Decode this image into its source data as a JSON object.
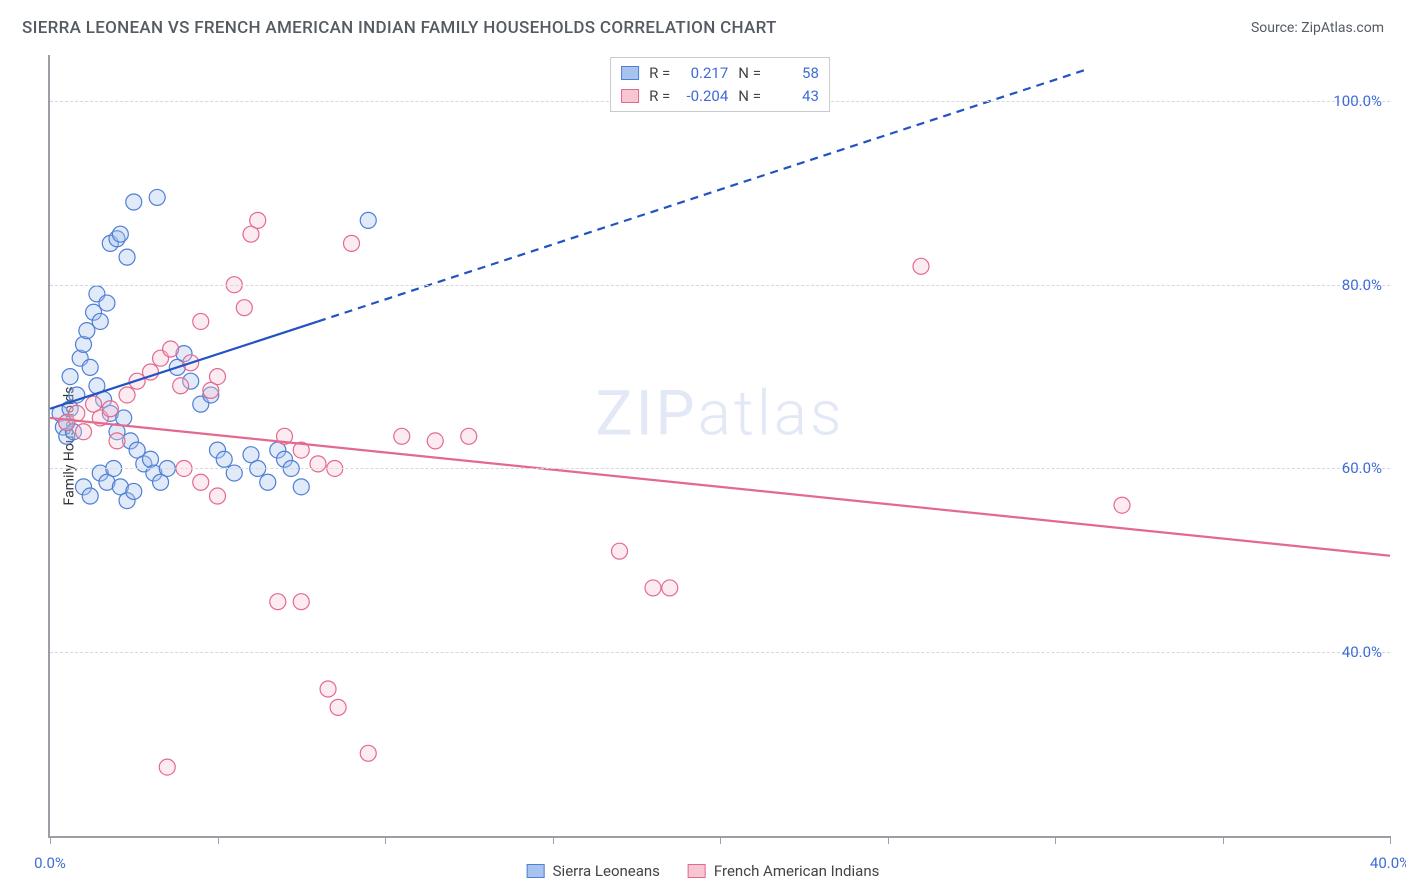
{
  "title": "SIERRA LEONEAN VS FRENCH AMERICAN INDIAN FAMILY HOUSEHOLDS CORRELATION CHART",
  "source_label": "Source: ZipAtlas.com",
  "watermark": {
    "bold": "ZIP",
    "thin": "atlas"
  },
  "y_axis_label": "Family Households",
  "chart": {
    "type": "scatter",
    "background_color": "#ffffff",
    "grid_color": "#d6d8db",
    "axis_color": "#9a9fa6",
    "tick_label_color": "#3f6bd8",
    "xlim": [
      0,
      40
    ],
    "ylim": [
      20,
      105
    ],
    "y_ticks": [
      40,
      60,
      80,
      100
    ],
    "y_tick_labels": [
      "40.0%",
      "60.0%",
      "80.0%",
      "100.0%"
    ],
    "x_ticks": [
      0,
      5,
      10,
      15,
      20,
      25,
      30,
      35,
      40
    ],
    "x_tick_visible_labels": {
      "0": "0.0%",
      "40": "40.0%"
    },
    "marker_radius": 8,
    "marker_stroke_width": 1.2,
    "marker_fill_opacity": 0.35
  },
  "series": {
    "blue": {
      "name": "Sierra Leoneans",
      "color_fill": "#a8c3ee",
      "color_stroke": "#4f7fd6",
      "r": "0.217",
      "n": "58",
      "trend": {
        "x1": 0,
        "y1": 66.5,
        "x2": 8,
        "y2": 76,
        "dash_x2": 31,
        "dash_y2": 103.5,
        "line_color": "#2353c2",
        "line_width": 2.2
      },
      "points": [
        [
          0.3,
          66
        ],
        [
          0.4,
          64.5
        ],
        [
          0.5,
          65
        ],
        [
          0.6,
          66.5
        ],
        [
          0.5,
          63.5
        ],
        [
          0.7,
          64
        ],
        [
          0.8,
          68
        ],
        [
          0.6,
          70
        ],
        [
          0.9,
          72
        ],
        [
          1.0,
          73.5
        ],
        [
          1.1,
          75
        ],
        [
          1.3,
          77
        ],
        [
          1.4,
          79
        ],
        [
          1.5,
          76
        ],
        [
          1.7,
          78
        ],
        [
          1.8,
          84.5
        ],
        [
          2.0,
          85
        ],
        [
          2.1,
          85.5
        ],
        [
          2.3,
          83
        ],
        [
          2.5,
          89
        ],
        [
          3.2,
          89.5
        ],
        [
          1.2,
          71
        ],
        [
          1.4,
          69
        ],
        [
          1.6,
          67.5
        ],
        [
          1.8,
          66
        ],
        [
          2.0,
          64
        ],
        [
          2.2,
          65.5
        ],
        [
          2.4,
          63
        ],
        [
          2.6,
          62
        ],
        [
          2.8,
          60.5
        ],
        [
          3.0,
          61
        ],
        [
          3.1,
          59.5
        ],
        [
          3.3,
          58.5
        ],
        [
          3.5,
          60
        ],
        [
          3.8,
          71
        ],
        [
          4.0,
          72.5
        ],
        [
          4.2,
          69.5
        ],
        [
          4.5,
          67
        ],
        [
          4.8,
          68
        ],
        [
          5.0,
          62
        ],
        [
          5.2,
          61
        ],
        [
          5.5,
          59.5
        ],
        [
          6.0,
          61.5
        ],
        [
          6.2,
          60
        ],
        [
          6.5,
          58.5
        ],
        [
          6.8,
          62
        ],
        [
          7.0,
          61
        ],
        [
          7.2,
          60
        ],
        [
          7.5,
          58
        ],
        [
          9.5,
          87
        ],
        [
          1.0,
          58
        ],
        [
          1.2,
          57
        ],
        [
          1.5,
          59.5
        ],
        [
          1.7,
          58.5
        ],
        [
          1.9,
          60
        ],
        [
          2.1,
          58
        ],
        [
          2.3,
          56.5
        ],
        [
          2.5,
          57.5
        ]
      ]
    },
    "pink": {
      "name": "French American Indians",
      "color_fill": "#f6c6d3",
      "color_stroke": "#e36a8e",
      "r": "-0.204",
      "n": "43",
      "trend": {
        "x1": 0,
        "y1": 65.5,
        "x2": 40,
        "y2": 50.5,
        "line_color": "#e36a8e",
        "line_width": 2.2
      },
      "points": [
        [
          0.5,
          65
        ],
        [
          0.8,
          66
        ],
        [
          1.0,
          64
        ],
        [
          1.3,
          67
        ],
        [
          1.5,
          65.5
        ],
        [
          1.8,
          66.5
        ],
        [
          2.0,
          63
        ],
        [
          2.3,
          68
        ],
        [
          2.6,
          69.5
        ],
        [
          3.0,
          70.5
        ],
        [
          3.3,
          72
        ],
        [
          3.6,
          73
        ],
        [
          3.9,
          69
        ],
        [
          4.2,
          71.5
        ],
        [
          4.5,
          76
        ],
        [
          4.8,
          68.5
        ],
        [
          5.0,
          70
        ],
        [
          5.5,
          80
        ],
        [
          5.8,
          77.5
        ],
        [
          6.0,
          85.5
        ],
        [
          6.2,
          87
        ],
        [
          7.0,
          63.5
        ],
        [
          7.5,
          62
        ],
        [
          8.0,
          60.5
        ],
        [
          8.5,
          60
        ],
        [
          9.0,
          84.5
        ],
        [
          10.5,
          63.5
        ],
        [
          11.5,
          63
        ],
        [
          12.5,
          63.5
        ],
        [
          7.5,
          45.5
        ],
        [
          8.3,
          36
        ],
        [
          8.6,
          34
        ],
        [
          9.5,
          29
        ],
        [
          3.5,
          27.5
        ],
        [
          6.8,
          45.5
        ],
        [
          17.0,
          51
        ],
        [
          18.0,
          47
        ],
        [
          18.5,
          47
        ],
        [
          26.0,
          82
        ],
        [
          32.0,
          56
        ],
        [
          4.0,
          60
        ],
        [
          4.5,
          58.5
        ],
        [
          5.0,
          57
        ]
      ]
    }
  },
  "legend_top": {
    "r_label": "R =",
    "n_label": "N ="
  },
  "legend_bottom": [
    {
      "key": "blue"
    },
    {
      "key": "pink"
    }
  ]
}
